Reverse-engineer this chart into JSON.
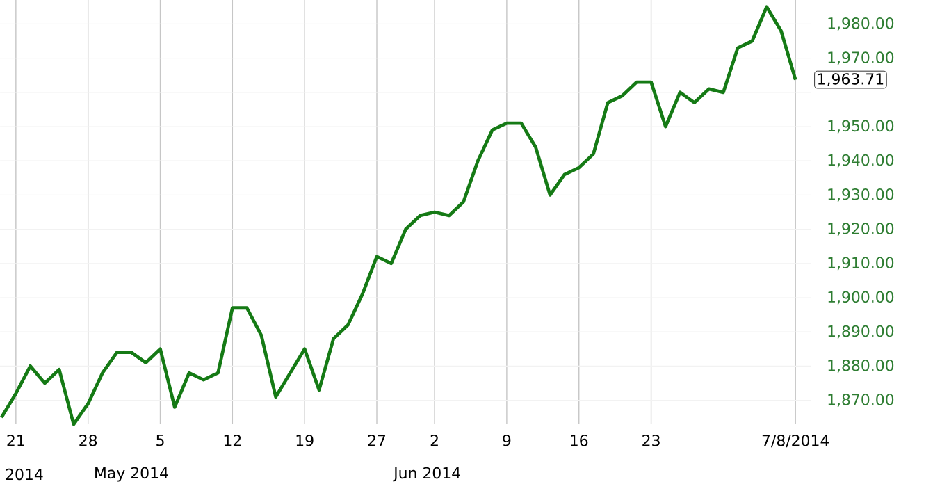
{
  "chart_data": {
    "type": "line",
    "categories": [
      null,
      "21",
      null,
      null,
      null,
      null,
      "28",
      null,
      null,
      null,
      null,
      "5",
      null,
      null,
      null,
      null,
      "12",
      null,
      null,
      null,
      null,
      "19",
      null,
      null,
      null,
      null,
      "27",
      null,
      null,
      null,
      "2",
      null,
      null,
      null,
      null,
      "9",
      null,
      null,
      null,
      null,
      "16",
      null,
      null,
      null,
      null,
      "23",
      null,
      null,
      null,
      null,
      null,
      null,
      null,
      null,
      null,
      "7/8/2014"
    ],
    "series": [
      {
        "color": "#157a15",
        "values": [
          1865,
          1872,
          1880,
          1875,
          1879,
          1863,
          1869,
          1878,
          1884,
          1884,
          1881,
          1885,
          1868,
          1878,
          1876,
          1878,
          1897,
          1897,
          1889,
          1871,
          1878,
          1885,
          1873,
          1888,
          1892,
          1901,
          1912,
          1910,
          1920,
          1924,
          1925,
          1924,
          1928,
          1940,
          1949,
          1951,
          1951,
          1944,
          1930,
          1936,
          1938,
          1942,
          1957,
          1959,
          1963,
          1963,
          1950,
          1960,
          1957,
          1961,
          1960,
          1973,
          1975,
          1985,
          1978,
          1963.71
        ]
      }
    ],
    "value_labels": [
      null,
      null,
      null,
      null,
      null,
      null,
      null,
      null,
      null,
      null,
      null,
      null,
      null,
      null,
      null,
      null,
      null,
      null,
      null,
      null,
      null,
      null,
      null,
      null,
      null,
      null,
      null,
      null,
      null,
      null,
      null,
      null,
      null,
      null,
      null,
      null,
      null,
      null,
      null,
      null,
      null,
      null,
      null,
      null,
      null,
      null,
      null,
      null,
      null,
      null,
      null,
      null,
      null,
      null,
      null,
      "1,963.71"
    ],
    "ylim": [
      1863,
      1987
    ],
    "yticks": [
      {
        "value": 1870,
        "label": "1,870.00"
      },
      {
        "value": 1880,
        "label": "1,880.00"
      },
      {
        "value": 1890,
        "label": "1,890.00"
      },
      {
        "value": 1900,
        "label": "1,900.00"
      },
      {
        "value": 1910,
        "label": "1,910.00"
      },
      {
        "value": 1920,
        "label": "1,920.00"
      },
      {
        "value": 1930,
        "label": "1,930.00"
      },
      {
        "value": 1940,
        "label": "1,940.00"
      },
      {
        "value": 1950,
        "label": "1,950.00"
      },
      {
        "value": 1960,
        "label": null
      },
      {
        "value": 1970,
        "label": "1,970.00"
      },
      {
        "value": 1980,
        "label": "1,980.00"
      }
    ],
    "grid": true,
    "annotations": [
      "2014",
      "May 2014",
      "Jun 2014"
    ]
  }
}
